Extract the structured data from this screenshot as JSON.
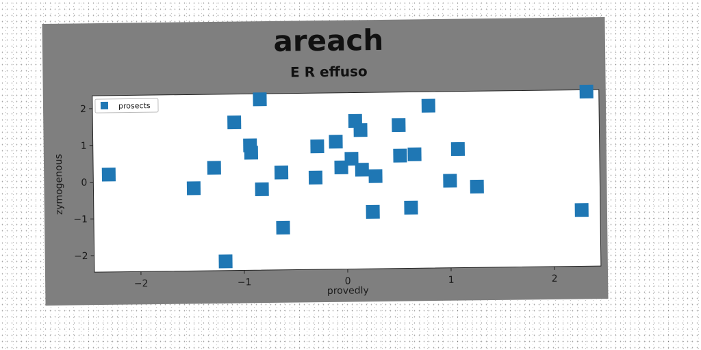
{
  "chart_data": {
    "type": "scatter",
    "title": "areach",
    "subtitle": "E R effuso",
    "xlabel": "provedly",
    "ylabel": "zymogenous",
    "xlim": [
      -2.45,
      2.45
    ],
    "ylim": [
      -2.45,
      2.35
    ],
    "xticks": [
      -2,
      -1,
      0,
      1,
      2
    ],
    "yticks": [
      -2,
      -1,
      0,
      1,
      2
    ],
    "xtick_labels": [
      "−2",
      "−1",
      "0",
      "1",
      "2"
    ],
    "ytick_labels": [
      "−2",
      "−1",
      "0",
      "1",
      "2"
    ],
    "grid": false,
    "legend_position": "top-left",
    "marker": "square",
    "series": [
      {
        "name": "prosects",
        "color": "#1f77b4",
        "x": [
          -2.3,
          -1.48,
          -1.28,
          -1.08,
          -0.93,
          -0.92,
          -0.83,
          -0.82,
          -0.63,
          -0.62,
          -0.3,
          -0.28,
          -0.1,
          -0.05,
          0.05,
          0.09,
          0.14,
          0.15,
          0.28,
          0.25,
          0.51,
          0.52,
          0.62,
          0.66,
          0.8,
          1.0,
          1.08,
          1.26,
          2.27,
          2.33,
          -1.18
        ],
        "y": [
          0.2,
          -0.2,
          0.35,
          1.58,
          0.95,
          0.75,
          2.2,
          -0.25,
          0.2,
          -1.3,
          0.05,
          0.9,
          1.02,
          0.32,
          0.55,
          1.58,
          1.33,
          0.25,
          0.07,
          -0.9,
          1.45,
          0.62,
          -0.8,
          0.65,
          1.97,
          -0.08,
          0.78,
          -0.25,
          -0.92,
          2.3,
          -2.2
        ]
      }
    ]
  }
}
